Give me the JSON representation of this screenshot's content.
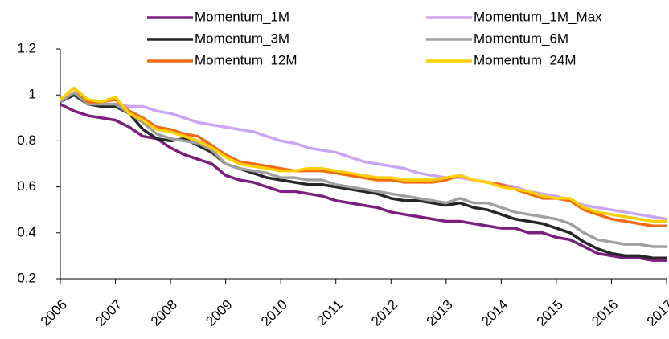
{
  "chart_data": {
    "type": "line",
    "x": [
      2006,
      2006.25,
      2006.5,
      2006.75,
      2007,
      2007.25,
      2007.5,
      2007.75,
      2008,
      2008.25,
      2008.5,
      2008.75,
      2009,
      2009.25,
      2009.5,
      2009.75,
      2010,
      2010.25,
      2010.5,
      2010.75,
      2011,
      2011.25,
      2011.5,
      2011.75,
      2012,
      2012.25,
      2012.5,
      2012.75,
      2013,
      2013.25,
      2013.5,
      2013.75,
      2014,
      2014.25,
      2014.5,
      2014.75,
      2015,
      2015.25,
      2015.5,
      2015.75,
      2016,
      2016.25,
      2016.5,
      2016.75,
      2017
    ],
    "xlim": [
      2006,
      2017
    ],
    "xticks": [
      2006,
      2007,
      2008,
      2009,
      2010,
      2011,
      2012,
      2013,
      2014,
      2015,
      2016,
      2017
    ],
    "ylim": [
      0.2,
      1.2
    ],
    "yticks": [
      0.2,
      0.4,
      0.6,
      0.8,
      1.0,
      1.2
    ],
    "grid": false,
    "legend": "top",
    "series": [
      {
        "name": "Momentum_1M",
        "color": "#7a1f7e",
        "values": [
          0.96,
          0.93,
          0.91,
          0.9,
          0.89,
          0.86,
          0.82,
          0.81,
          0.77,
          0.74,
          0.72,
          0.7,
          0.65,
          0.63,
          0.62,
          0.6,
          0.58,
          0.58,
          0.57,
          0.56,
          0.54,
          0.53,
          0.52,
          0.51,
          0.49,
          0.48,
          0.47,
          0.46,
          0.45,
          0.45,
          0.44,
          0.43,
          0.42,
          0.42,
          0.4,
          0.4,
          0.38,
          0.37,
          0.34,
          0.31,
          0.3,
          0.29,
          0.29,
          0.28,
          0.28
        ]
      },
      {
        "name": "Momentum_1M_Max",
        "color": "#c9a5f5",
        "values": [
          0.98,
          1.0,
          0.97,
          0.96,
          0.96,
          0.95,
          0.95,
          0.93,
          0.92,
          0.9,
          0.88,
          0.87,
          0.86,
          0.85,
          0.84,
          0.82,
          0.8,
          0.79,
          0.77,
          0.76,
          0.75,
          0.73,
          0.71,
          0.7,
          0.69,
          0.68,
          0.66,
          0.65,
          0.64,
          0.64,
          0.63,
          0.62,
          0.61,
          0.6,
          0.58,
          0.57,
          0.56,
          0.54,
          0.52,
          0.51,
          0.5,
          0.49,
          0.48,
          0.47,
          0.46
        ]
      },
      {
        "name": "Momentum_3M",
        "color": "#262626",
        "values": [
          0.97,
          1.0,
          0.96,
          0.95,
          0.95,
          0.92,
          0.85,
          0.81,
          0.8,
          0.81,
          0.78,
          0.75,
          0.7,
          0.68,
          0.66,
          0.64,
          0.63,
          0.62,
          0.61,
          0.61,
          0.6,
          0.59,
          0.58,
          0.57,
          0.55,
          0.54,
          0.54,
          0.53,
          0.52,
          0.53,
          0.51,
          0.5,
          0.48,
          0.46,
          0.45,
          0.44,
          0.42,
          0.4,
          0.36,
          0.33,
          0.31,
          0.3,
          0.3,
          0.29,
          0.29
        ]
      },
      {
        "name": "Momentum_6M",
        "color": "#a0a0a0",
        "values": [
          0.97,
          1.01,
          0.96,
          0.96,
          0.96,
          0.92,
          0.88,
          0.83,
          0.81,
          0.8,
          0.79,
          0.76,
          0.7,
          0.68,
          0.67,
          0.66,
          0.64,
          0.64,
          0.63,
          0.63,
          0.61,
          0.6,
          0.59,
          0.58,
          0.57,
          0.56,
          0.55,
          0.54,
          0.53,
          0.55,
          0.53,
          0.53,
          0.51,
          0.49,
          0.48,
          0.47,
          0.46,
          0.44,
          0.4,
          0.37,
          0.36,
          0.35,
          0.35,
          0.34,
          0.34
        ]
      },
      {
        "name": "Momentum_12M",
        "color": "#f26b12",
        "values": [
          0.98,
          1.03,
          0.97,
          0.97,
          0.98,
          0.93,
          0.9,
          0.86,
          0.85,
          0.83,
          0.82,
          0.78,
          0.74,
          0.71,
          0.7,
          0.69,
          0.68,
          0.67,
          0.67,
          0.67,
          0.66,
          0.65,
          0.64,
          0.63,
          0.63,
          0.62,
          0.62,
          0.62,
          0.63,
          0.65,
          0.63,
          0.62,
          0.61,
          0.59,
          0.57,
          0.55,
          0.55,
          0.54,
          0.5,
          0.48,
          0.46,
          0.45,
          0.44,
          0.43,
          0.43
        ]
      },
      {
        "name": "Momentum_24M",
        "color": "#ffd000",
        "values": [
          0.98,
          1.03,
          0.98,
          0.97,
          0.99,
          0.92,
          0.89,
          0.85,
          0.84,
          0.82,
          0.8,
          0.77,
          0.73,
          0.7,
          0.69,
          0.68,
          0.67,
          0.67,
          0.68,
          0.68,
          0.67,
          0.66,
          0.65,
          0.64,
          0.64,
          0.63,
          0.63,
          0.63,
          0.64,
          0.65,
          0.63,
          0.62,
          0.6,
          0.59,
          0.58,
          0.56,
          0.55,
          0.55,
          0.51,
          0.49,
          0.48,
          0.47,
          0.46,
          0.45,
          0.45
        ]
      }
    ]
  }
}
